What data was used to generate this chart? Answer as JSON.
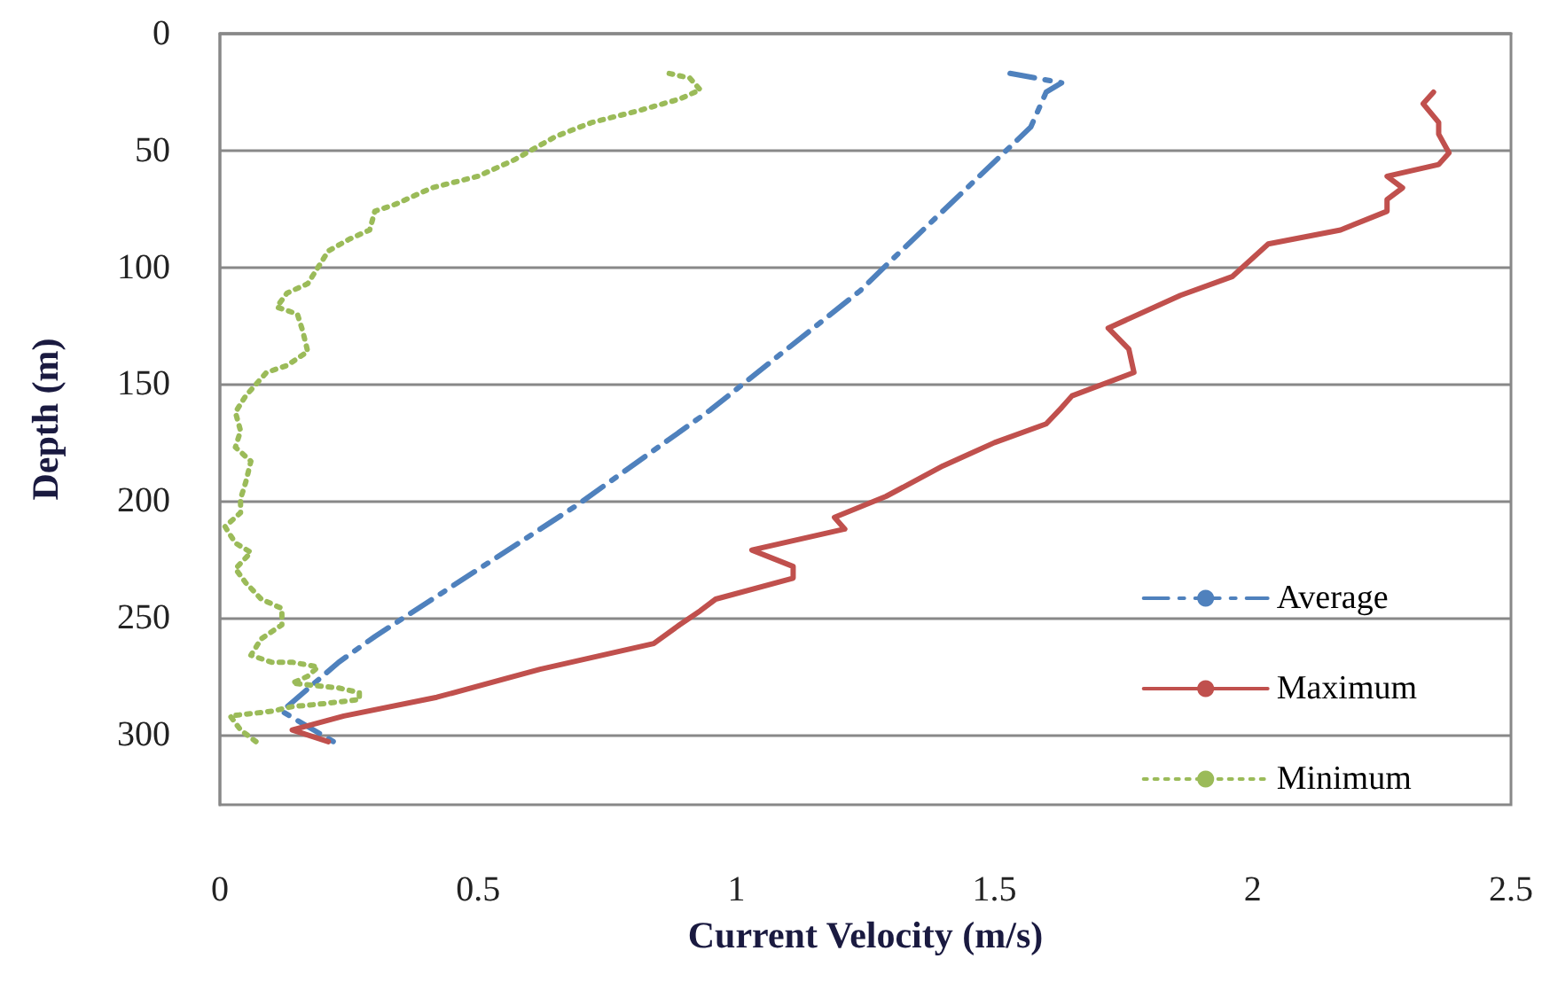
{
  "chart_data": {
    "type": "line",
    "xlabel": "Current Velocity (m/s)",
    "ylabel": "Depth (m)",
    "xlim": [
      0,
      2.5
    ],
    "xticks": [
      0,
      0.5,
      1,
      1.5,
      2,
      2.5
    ],
    "ylim": [
      330,
      0
    ],
    "yticks": [
      0,
      50,
      100,
      150,
      200,
      250,
      300
    ],
    "grid": "y",
    "legend": "bottom right",
    "marker": "none",
    "series": [
      {
        "name": "Average",
        "color": "#4f81bd",
        "line_style": "dashed",
        "x": [
          1.53,
          1.63,
          1.6,
          1.57,
          1.3,
          1.24,
          0.95,
          0.69,
          0.3,
          0.23,
          0.12,
          0.22
        ],
        "values": [
          17,
          21,
          25,
          40,
          97,
          110,
          161,
          202,
          258,
          269,
          290,
          303
        ]
      },
      {
        "name": "Maximum",
        "color": "#c0504d",
        "line_style": "solid",
        "x": [
          2.35,
          2.33,
          2.36,
          2.36,
          2.38,
          2.36,
          2.26,
          2.29,
          2.26,
          2.26,
          2.17,
          2.03,
          1.96,
          1.86,
          1.72,
          1.76,
          1.77,
          1.65,
          1.63,
          1.6,
          1.5,
          1.4,
          1.29,
          1.19,
          1.21,
          1.03,
          1.11,
          1.11,
          0.96,
          0.93,
          0.89,
          0.84,
          0.62,
          0.42,
          0.24,
          0.14,
          0.21
        ],
        "values": [
          25,
          30,
          38,
          43,
          51,
          56,
          61,
          66,
          71,
          76,
          84,
          90,
          104,
          112,
          126,
          135,
          145,
          155,
          160,
          167,
          175,
          185,
          198,
          207,
          212,
          221,
          228,
          233,
          242,
          247,
          253,
          261,
          272,
          284,
          292,
          298,
          303
        ]
      },
      {
        "name": "Minimum",
        "color": "#9bbb59",
        "line_style": "dotted",
        "x": [
          0.87,
          0.91,
          0.93,
          0.89,
          0.81,
          0.72,
          0.65,
          0.61,
          0.57,
          0.5,
          0.41,
          0.34,
          0.3,
          0.29,
          0.25,
          0.21,
          0.19,
          0.17,
          0.13,
          0.11,
          0.15,
          0.16,
          0.17,
          0.13,
          0.09,
          0.05,
          0.03,
          0.04,
          0.03,
          0.06,
          0.05,
          0.04,
          0.04,
          0.01,
          0.03,
          0.06,
          0.03,
          0.05,
          0.08,
          0.12,
          0.12,
          0.08,
          0.06,
          0.1,
          0.14,
          0.19,
          0.17,
          0.14,
          0.23,
          0.27,
          0.27,
          0.23,
          0.19,
          0.14,
          0.1,
          0.06,
          0.02,
          0.04,
          0.07
        ],
        "values": [
          17,
          19,
          24,
          28,
          33,
          38,
          44,
          49,
          54,
          61,
          66,
          73,
          76,
          84,
          88,
          93,
          100,
          107,
          111,
          117,
          120,
          127,
          136,
          142,
          145,
          155,
          162,
          170,
          177,
          183,
          192,
          199,
          205,
          211,
          218,
          222,
          229,
          235,
          242,
          246,
          253,
          259,
          266,
          269,
          269,
          271,
          275,
          278,
          280,
          282,
          285,
          286,
          287,
          288,
          290,
          291,
          292,
          298,
          303
        ]
      }
    ]
  }
}
